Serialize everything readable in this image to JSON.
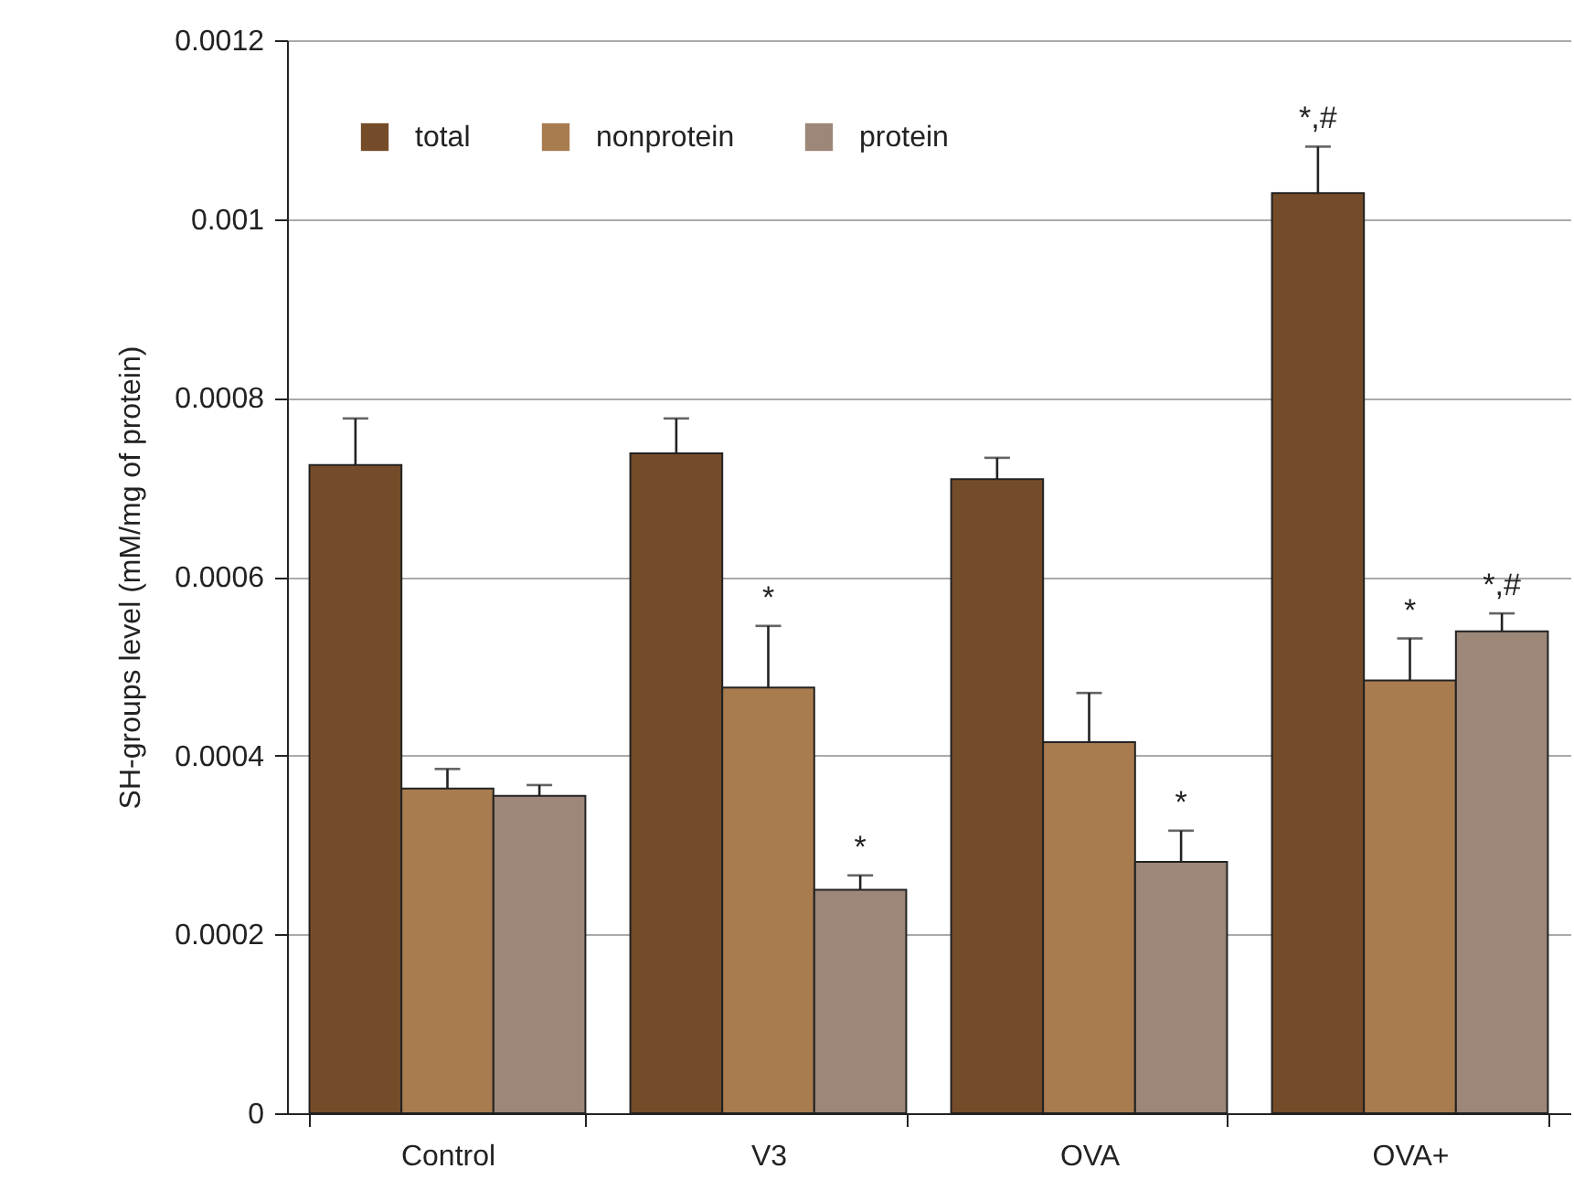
{
  "chart_data": {
    "type": "bar",
    "ylabel": "SH-groups level (mM/mg of protein)",
    "categories": [
      "Control",
      "V3",
      "OVA",
      "OVA+"
    ],
    "series": [
      {
        "name": "total",
        "color": "#754c29",
        "values": [
          0.000725,
          0.000738,
          0.000709,
          0.001029
        ],
        "errors": [
          5.2e-05,
          3.9e-05,
          2.4e-05,
          5.2e-05
        ]
      },
      {
        "name": "nonprotein",
        "color": "#a97c50",
        "values": [
          0.000363,
          0.000476,
          0.000415,
          0.000484
        ],
        "errors": [
          2.2e-05,
          6.9e-05,
          5.5e-05,
          4.7e-05
        ]
      },
      {
        "name": "protein",
        "color": "#9c8778",
        "values": [
          0.000355,
          0.00025,
          0.000281,
          0.000539
        ],
        "errors": [
          1.2e-05,
          1.6e-05,
          3.5e-05,
          2e-05
        ]
      }
    ],
    "ylim": [
      0,
      0.0012
    ],
    "yticks": [
      0,
      0.0002,
      0.0004,
      0.0006,
      0.0008,
      0.001,
      0.0012
    ],
    "grid": "y",
    "legend": "top left",
    "annotations": [
      "*",
      "*",
      "*",
      "*,#",
      "*",
      "*,#"
    ]
  }
}
